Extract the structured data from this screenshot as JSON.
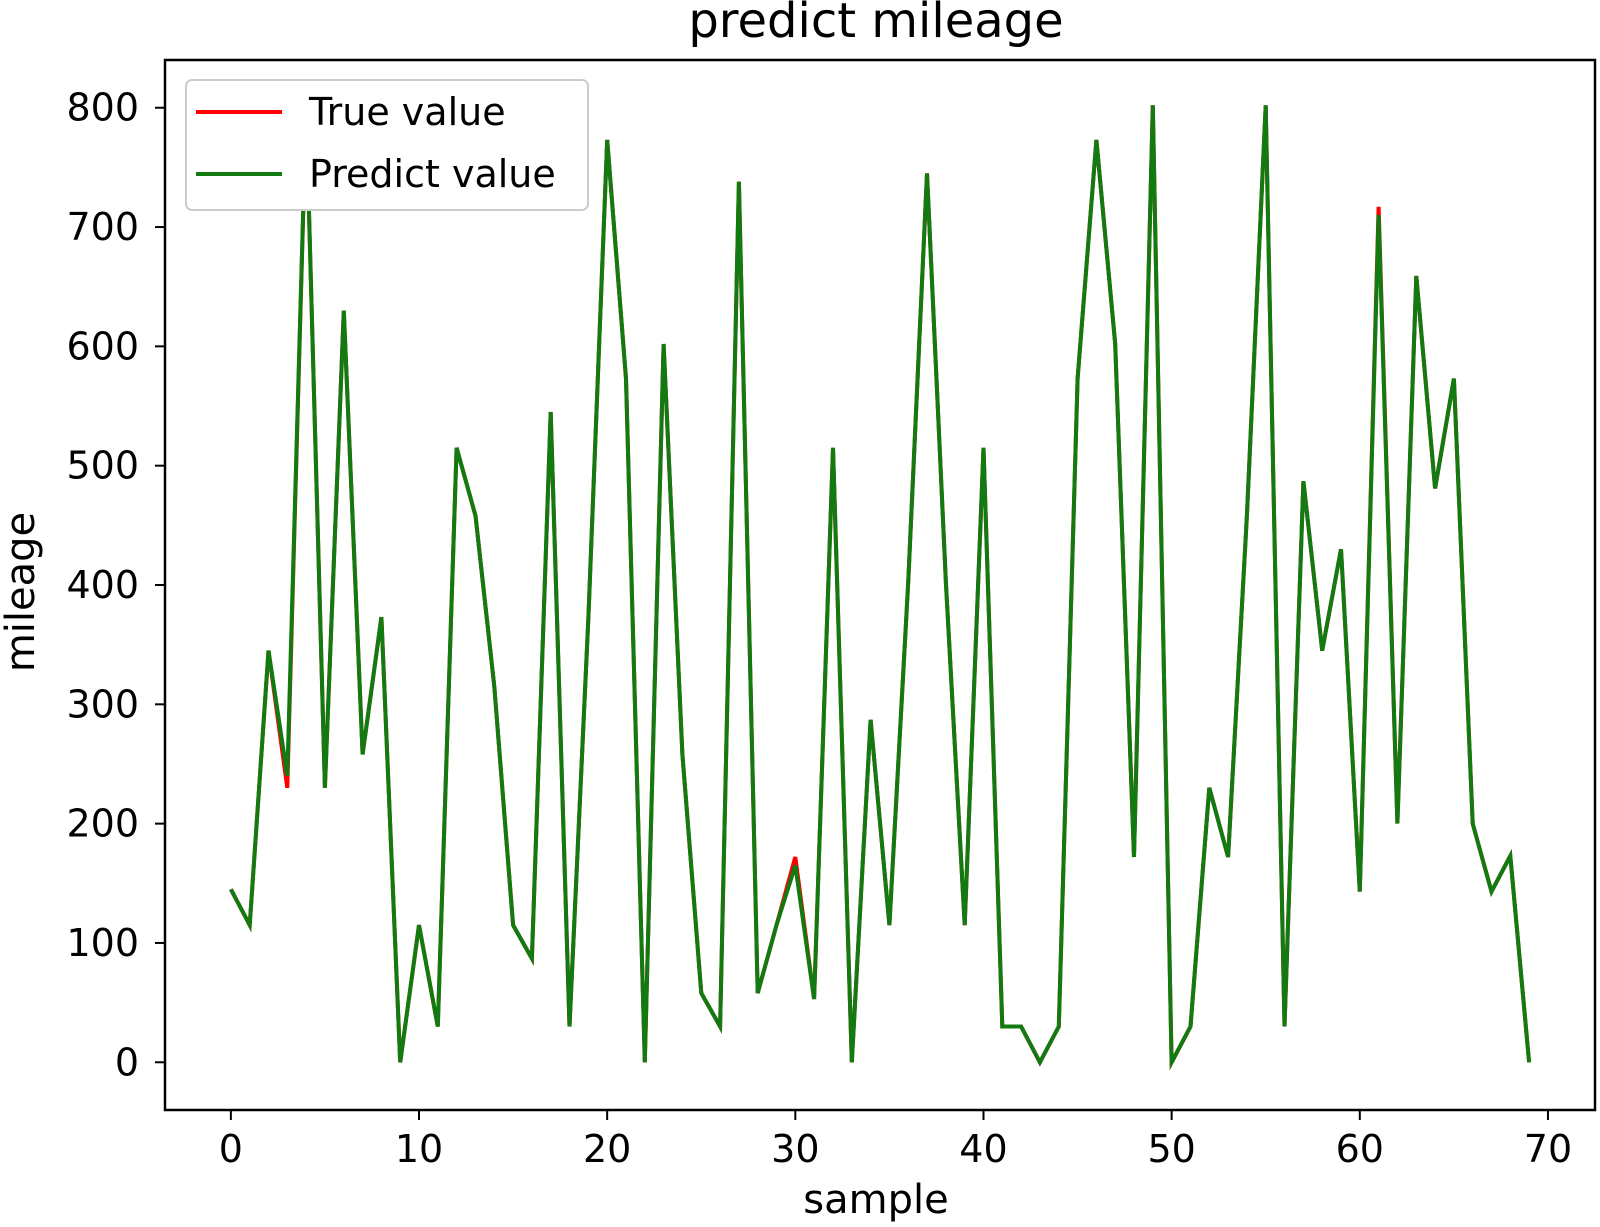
{
  "chart_data": {
    "type": "line",
    "title": "predict mileage",
    "xlabel": "sample",
    "ylabel": "mileage",
    "xlim": [
      -3.5,
      72.5
    ],
    "ylim": [
      -40,
      840
    ],
    "xticks": [
      0,
      10,
      20,
      30,
      40,
      50,
      60,
      70
    ],
    "yticks": [
      0,
      100,
      200,
      300,
      400,
      500,
      600,
      700,
      800
    ],
    "xtick_labels": [
      "0",
      "10",
      "20",
      "30",
      "40",
      "50",
      "60",
      "70"
    ],
    "ytick_labels": [
      "0",
      "100",
      "200",
      "300",
      "400",
      "500",
      "600",
      "700",
      "800"
    ],
    "grid": false,
    "legend_position": "upper-left",
    "x": [
      0,
      1,
      2,
      3,
      4,
      5,
      6,
      7,
      8,
      9,
      10,
      11,
      12,
      13,
      14,
      15,
      16,
      17,
      18,
      19,
      20,
      21,
      22,
      23,
      24,
      25,
      26,
      27,
      28,
      29,
      30,
      31,
      32,
      33,
      34,
      35,
      36,
      37,
      38,
      39,
      40,
      41,
      42,
      43,
      44,
      45,
      46,
      47,
      48,
      49,
      50,
      51,
      52,
      53,
      54,
      55,
      56,
      57,
      58,
      59,
      60,
      61,
      62,
      63,
      64,
      65,
      66,
      67,
      68,
      69
    ],
    "series": [
      {
        "name": "True value",
        "color": "#ff0000",
        "values": [
          145,
          115,
          345,
          230,
          800,
          230,
          630,
          258,
          373,
          0,
          115,
          30,
          515,
          458,
          315,
          115,
          87,
          545,
          30,
          373,
          773,
          573,
          0,
          602,
          258,
          58,
          30,
          738,
          58,
          115,
          172,
          53,
          515,
          0,
          287,
          115,
          402,
          745,
          402,
          115,
          515,
          30,
          30,
          0,
          30,
          573,
          773,
          602,
          172,
          802,
          0,
          30,
          230,
          172,
          458,
          802,
          30,
          487,
          345,
          430,
          143,
          717,
          200,
          659,
          481,
          573,
          200,
          143,
          173,
          0
        ]
      },
      {
        "name": "Predict value",
        "color": "#117a11",
        "values": [
          145,
          115,
          345,
          240,
          800,
          230,
          630,
          258,
          373,
          0,
          115,
          30,
          515,
          458,
          315,
          115,
          87,
          545,
          30,
          373,
          773,
          573,
          0,
          602,
          258,
          58,
          30,
          738,
          58,
          115,
          165,
          53,
          515,
          0,
          287,
          115,
          402,
          745,
          402,
          115,
          515,
          30,
          30,
          0,
          30,
          573,
          773,
          602,
          172,
          802,
          0,
          30,
          230,
          172,
          458,
          802,
          30,
          487,
          345,
          430,
          143,
          710,
          200,
          659,
          481,
          573,
          200,
          143,
          173,
          0
        ]
      }
    ]
  }
}
